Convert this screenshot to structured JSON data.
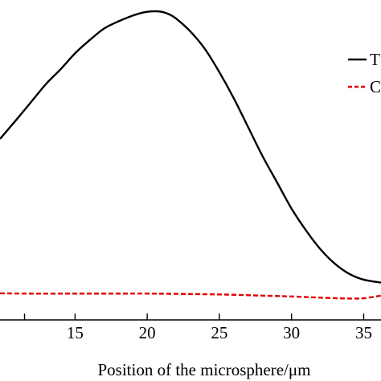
{
  "chart_data": {
    "type": "line",
    "xlabel": "Position of the microsphere/μm",
    "ylabel": "",
    "xlim": [
      9.8,
      36.2
    ],
    "ylim": [
      0,
      1
    ],
    "x_ticks": [
      15,
      20,
      25,
      30,
      35
    ],
    "x_tick_labels": [
      "15",
      "20",
      "25",
      "30",
      "35"
    ],
    "grid": false,
    "legend": {
      "placement": "top-right",
      "entries": [
        "T",
        "C"
      ]
    },
    "series": [
      {
        "name": "T",
        "color": "#000000",
        "style": "solid",
        "x": [
          9.8,
          11,
          12,
          13,
          14,
          15,
          16,
          17,
          18,
          19,
          19.5,
          20,
          20.5,
          21,
          21.5,
          22,
          23,
          24,
          25,
          26,
          27,
          28,
          29,
          30,
          31,
          32,
          33,
          34,
          35,
          36.2
        ],
        "y": [
          0.56,
          0.63,
          0.69,
          0.75,
          0.8,
          0.855,
          0.9,
          0.94,
          0.965,
          0.985,
          0.993,
          0.998,
          1.0,
          0.998,
          0.99,
          0.975,
          0.93,
          0.87,
          0.79,
          0.7,
          0.6,
          0.5,
          0.41,
          0.32,
          0.245,
          0.18,
          0.13,
          0.095,
          0.075,
          0.065
        ]
      },
      {
        "name": "C",
        "color": "#e00000",
        "style": "dashed",
        "x": [
          9.8,
          12,
          15,
          18,
          20,
          22,
          25,
          28,
          30,
          32,
          34,
          35,
          36.2
        ],
        "y": [
          0.028,
          0.027,
          0.027,
          0.027,
          0.027,
          0.026,
          0.024,
          0.02,
          0.017,
          0.013,
          0.01,
          0.011,
          0.02
        ]
      }
    ]
  }
}
